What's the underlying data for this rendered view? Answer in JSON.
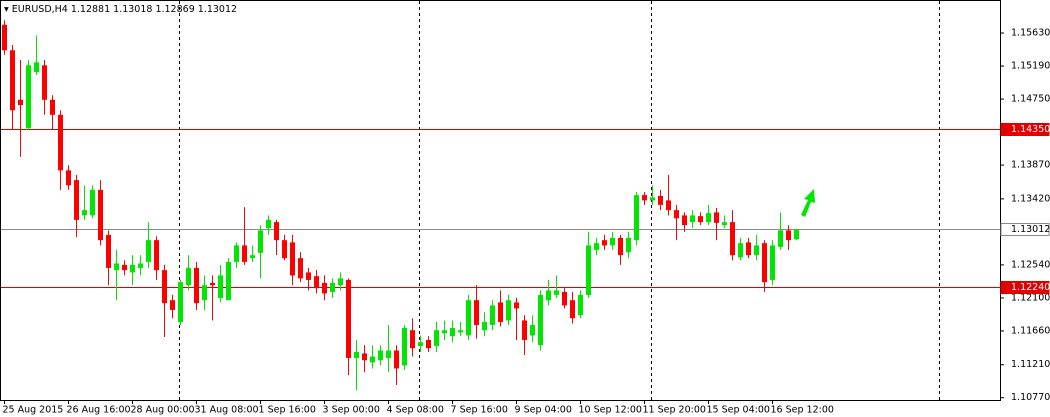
{
  "chart_data": {
    "type": "candlestick",
    "title": "EURUSD,H4",
    "categories": [
      "25 Aug 2015",
      null,
      null,
      null,
      null,
      null,
      null,
      null,
      "26 Aug 16:00",
      null,
      null,
      null,
      null,
      null,
      null,
      null,
      "28 Aug 00:00",
      null,
      null,
      null,
      null,
      null,
      null,
      null,
      "31 Aug 08:00",
      null,
      null,
      null,
      null,
      null,
      null,
      null,
      "1 Sep 16:00",
      null,
      null,
      null,
      null,
      null,
      null,
      null,
      "3 Sep 00:00",
      null,
      null,
      null,
      null,
      null,
      null,
      null,
      "4 Sep 08:00",
      null,
      null,
      null,
      null,
      null,
      null,
      null,
      "7 Sep 16:00",
      null,
      null,
      null,
      null,
      null,
      null,
      null,
      "9 Sep 04:00",
      null,
      null,
      null,
      null,
      null,
      null,
      null,
      "10 Sep 12:00",
      null,
      null,
      null,
      null,
      null,
      null,
      null,
      "11 Sep 20:00",
      null,
      null,
      null,
      null,
      null,
      null,
      null,
      "15 Sep 04:00",
      null,
      null,
      null,
      null,
      null,
      null,
      null,
      "16 Sep 12:00",
      null,
      null,
      null
    ],
    "open": [
      1.1574,
      1.154,
      1.1474,
      1.1436,
      1.1511,
      1.152,
      1.1474,
      1.1454,
      1.138,
      1.1367,
      1.132,
      1.132,
      1.1354,
      1.1294,
      1.1247,
      1.1254,
      1.1244,
      1.125,
      1.1258,
      1.1287,
      1.1247,
      1.1207,
      1.1178,
      1.1227,
      1.125,
      1.1207,
      1.123,
      1.121,
      1.1207,
      1.1258,
      1.128,
      1.1263,
      1.127,
      1.1303,
      1.1311,
      1.1287,
      1.1284,
      1.1263,
      1.1244,
      1.1239,
      1.123,
      1.1218,
      1.1227,
      1.1234,
      1.113,
      1.1136,
      1.1124,
      1.1127,
      1.113,
      1.114,
      1.112,
      1.1167,
      1.1146,
      1.1154,
      1.1146,
      1.1163,
      1.1159,
      1.1164,
      1.116,
      1.1207,
      1.1167,
      1.1174,
      1.1204,
      1.118,
      1.1204,
      1.118,
      1.116,
      1.1147,
      1.1207,
      1.1214,
      1.1218,
      1.1207,
      1.1187,
      1.1214,
      1.1274,
      1.1287,
      1.128,
      1.129,
      1.1271,
      1.1287,
      1.1347,
      1.134,
      1.1346,
      1.134,
      1.1327,
      1.132,
      1.1311,
      1.1319,
      1.1311,
      1.1324,
      1.1307,
      1.1311,
      1.1264,
      1.1284,
      1.1267,
      1.1283,
      1.1234,
      1.1278,
      1.13,
      1.12881
    ],
    "high": [
      1.158,
      1.1547,
      1.1527,
      1.1527,
      1.156,
      1.1527,
      1.148,
      1.146,
      1.1387,
      1.1374,
      1.136,
      1.136,
      1.1367,
      1.13,
      1.1274,
      1.126,
      1.1267,
      1.1267,
      1.1311,
      1.1292,
      1.1254,
      1.1214,
      1.1234,
      1.1267,
      1.1258,
      1.124,
      1.124,
      1.1254,
      1.1263,
      1.1284,
      1.1331,
      1.128,
      1.1307,
      1.132,
      1.1314,
      1.1294,
      1.1294,
      1.1271,
      1.125,
      1.1247,
      1.124,
      1.1236,
      1.1244,
      1.1236,
      1.1154,
      1.1147,
      1.1147,
      1.1147,
      1.1174,
      1.1147,
      1.1174,
      1.1183,
      1.116,
      1.1159,
      1.1178,
      1.118,
      1.118,
      1.1178,
      1.1214,
      1.1227,
      1.1191,
      1.1207,
      1.122,
      1.1214,
      1.121,
      1.1187,
      1.1187,
      1.122,
      1.1234,
      1.124,
      1.1223,
      1.1218,
      1.122,
      1.1298,
      1.129,
      1.1294,
      1.1298,
      1.1294,
      1.1298,
      1.1351,
      1.1351,
      1.136,
      1.1354,
      1.1374,
      1.1334,
      1.1324,
      1.1327,
      1.1324,
      1.1334,
      1.133,
      1.132,
      1.1327,
      1.129,
      1.129,
      1.1294,
      1.1287,
      1.1287,
      1.1324,
      1.1307,
      1.13018
    ],
    "low": [
      1.1534,
      1.1434,
      1.1398,
      1.1434,
      1.1507,
      1.1454,
      1.1434,
      1.1354,
      1.1354,
      1.1291,
      1.1314,
      1.1316,
      1.128,
      1.1227,
      1.1207,
      1.124,
      1.1227,
      1.124,
      1.125,
      1.1234,
      1.1158,
      1.1183,
      1.1174,
      1.122,
      1.1194,
      1.1194,
      1.118,
      1.1204,
      1.1207,
      1.125,
      1.1254,
      1.1258,
      1.1236,
      1.1294,
      1.1267,
      1.126,
      1.1227,
      1.1231,
      1.122,
      1.1216,
      1.1207,
      1.121,
      1.122,
      1.1107,
      1.1087,
      1.1111,
      1.1116,
      1.112,
      1.1111,
      1.1094,
      1.1114,
      1.1132,
      1.1138,
      1.1138,
      1.1138,
      1.1154,
      1.1151,
      1.1159,
      1.1154,
      1.1156,
      1.1159,
      1.1167,
      1.1172,
      1.1174,
      1.1154,
      1.1134,
      1.1151,
      1.114,
      1.12,
      1.121,
      1.1196,
      1.1176,
      1.1183,
      1.121,
      1.1267,
      1.1274,
      1.1274,
      1.1254,
      1.1263,
      1.128,
      1.1334,
      1.1334,
      1.1327,
      1.132,
      1.1287,
      1.1298,
      1.1303,
      1.1307,
      1.1307,
      1.1287,
      1.1303,
      1.126,
      1.126,
      1.1263,
      1.126,
      1.1218,
      1.1227,
      1.1274,
      1.1274,
      1.12869
    ],
    "close": [
      1.154,
      1.146,
      1.1467,
      1.152,
      1.1524,
      1.1474,
      1.1454,
      1.138,
      1.136,
      1.1314,
      1.1327,
      1.1354,
      1.1287,
      1.125,
      1.1256,
      1.1247,
      1.1254,
      1.1256,
      1.1287,
      1.1247,
      1.1203,
      1.1194,
      1.1231,
      1.125,
      1.1203,
      1.1227,
      1.1227,
      1.124,
      1.1258,
      1.128,
      1.1258,
      1.1267,
      1.13,
      1.1314,
      1.1287,
      1.1263,
      1.124,
      1.1236,
      1.1234,
      1.1223,
      1.1216,
      1.123,
      1.1236,
      1.113,
      1.1138,
      1.1127,
      1.1132,
      1.114,
      1.114,
      1.1116,
      1.117,
      1.1143,
      1.1151,
      1.1143,
      1.1167,
      1.1167,
      1.117,
      1.1167,
      1.1207,
      1.1174,
      1.1178,
      1.12,
      1.1178,
      1.1207,
      1.1196,
      1.1154,
      1.1174,
      1.1214,
      1.122,
      1.122,
      1.12,
      1.1183,
      1.1214,
      1.128,
      1.1283,
      1.128,
      1.129,
      1.1267,
      1.129,
      1.1347,
      1.134,
      1.1344,
      1.1334,
      1.1327,
      1.1316,
      1.1307,
      1.132,
      1.1311,
      1.1323,
      1.131,
      1.1311,
      1.1267,
      1.1283,
      1.1267,
      1.128,
      1.1231,
      1.128,
      1.13,
      1.1287,
      1.13012
    ],
    "up_color": "#00e600",
    "down_color": "#ff0000",
    "ylim": [
      1.1074,
      1.1607
    ],
    "yticks": [
      {
        "value": 1.1563,
        "label": "1.15630"
      },
      {
        "value": 1.1519,
        "label": "1.15190"
      },
      {
        "value": 1.1475,
        "label": "1.14750"
      },
      {
        "value": 1.1387,
        "label": "1.13870"
      },
      {
        "value": 1.1342,
        "label": "1.13420"
      },
      {
        "value": 1.1254,
        "label": "1.12540"
      },
      {
        "value": 1.121,
        "label": "1.12100"
      },
      {
        "value": 1.1166,
        "label": "1.11660"
      },
      {
        "value": 1.1121,
        "label": "1.11210"
      },
      {
        "value": 1.1077,
        "label": "1.10770"
      }
    ],
    "levels": [
      {
        "value": 1.1435,
        "label": "1.14350",
        "color": "#e00000"
      },
      {
        "value": 1.1224,
        "label": "1.12240",
        "color": "#e00000"
      }
    ],
    "last_price_color": "#8a8a8a"
  }
}
